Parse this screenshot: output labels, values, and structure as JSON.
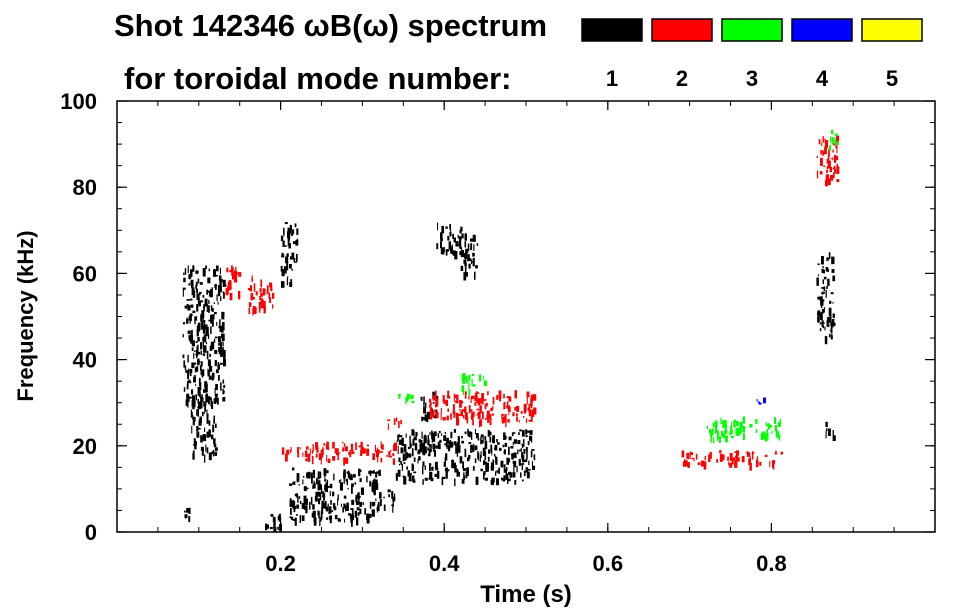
{
  "header": {
    "title_line1": "Shot 142346 ωB(ω) spectrum",
    "title_line2": "for toroidal mode number:"
  },
  "legend": [
    {
      "label": "1",
      "color": "#000000"
    },
    {
      "label": "2",
      "color": "#ff0000"
    },
    {
      "label": "3",
      "color": "#00ff00"
    },
    {
      "label": "4",
      "color": "#0000ff"
    },
    {
      "label": "5",
      "color": "#ffff00"
    }
  ],
  "chart_data": {
    "type": "heatmap",
    "title": "Shot 142346 ωB(ω) spectrum",
    "xlabel": "Time (s)",
    "ylabel": "Frequency (kHz)",
    "xlim": [
      0.0,
      1.0
    ],
    "ylim": [
      0,
      100
    ],
    "x_ticks": [
      {
        "value": 0.2,
        "label": "0.2"
      },
      {
        "value": 0.4,
        "label": "0.4"
      },
      {
        "value": 0.6,
        "label": "0.6"
      },
      {
        "value": 0.8,
        "label": "0.8"
      }
    ],
    "y_ticks": [
      {
        "value": 0,
        "label": "0"
      },
      {
        "value": 20,
        "label": "20"
      },
      {
        "value": 40,
        "label": "40"
      },
      {
        "value": 60,
        "label": "60"
      },
      {
        "value": 80,
        "label": "80"
      },
      {
        "value": 100,
        "label": "100"
      }
    ],
    "series": [
      {
        "name": "1",
        "color": "#000000",
        "regions": [
          {
            "t": [
              0.08,
              0.13
            ],
            "f": [
              30,
              62
            ]
          },
          {
            "t": [
              0.09,
              0.12
            ],
            "f": [
              18,
              32
            ]
          },
          {
            "t": [
              0.08,
              0.09
            ],
            "f": [
              2,
              6
            ]
          },
          {
            "t": [
              0.18,
              0.2
            ],
            "f": [
              1,
              5
            ]
          },
          {
            "t": [
              0.2,
              0.22
            ],
            "f": [
              58,
              72
            ]
          },
          {
            "t": [
              0.21,
              0.32
            ],
            "f": [
              3,
              15
            ]
          },
          {
            "t": [
              0.32,
              0.34
            ],
            "f": [
              6,
              10
            ]
          },
          {
            "t": [
              0.34,
              0.51
            ],
            "f": [
              12,
              24
            ]
          },
          {
            "t": [
              0.37,
              0.39
            ],
            "f": [
              26,
              33
            ]
          },
          {
            "t": [
              0.39,
              0.42
            ],
            "f": [
              64,
              72
            ]
          },
          {
            "t": [
              0.42,
              0.44
            ],
            "f": [
              60,
              70
            ]
          },
          {
            "t": [
              0.855,
              0.875
            ],
            "f": [
              45,
              65
            ]
          },
          {
            "t": [
              0.865,
              0.875
            ],
            "f": [
              22,
              26
            ]
          }
        ]
      },
      {
        "name": "2",
        "color": "#ff0000",
        "regions": [
          {
            "t": [
              0.16,
              0.19
            ],
            "f": [
              52,
              60
            ]
          },
          {
            "t": [
              0.13,
              0.15
            ],
            "f": [
              55,
              62
            ]
          },
          {
            "t": [
              0.2,
              0.23
            ],
            "f": [
              18,
              20
            ]
          },
          {
            "t": [
              0.23,
              0.34
            ],
            "f": [
              17,
              21
            ]
          },
          {
            "t": [
              0.33,
              0.35
            ],
            "f": [
              25,
              27
            ]
          },
          {
            "t": [
              0.38,
              0.51
            ],
            "f": [
              26,
              33
            ]
          },
          {
            "t": [
              0.69,
              0.82
            ],
            "f": [
              16,
              19
            ]
          },
          {
            "t": [
              0.855,
              0.88
            ],
            "f": [
              80,
              92
            ]
          }
        ]
      },
      {
        "name": "3",
        "color": "#00ff00",
        "regions": [
          {
            "t": [
              0.34,
              0.36
            ],
            "f": [
              30,
              33
            ]
          },
          {
            "t": [
              0.42,
              0.45
            ],
            "f": [
              33,
              37
            ]
          },
          {
            "t": [
              0.72,
              0.81
            ],
            "f": [
              22,
              27
            ]
          },
          {
            "t": [
              0.87,
              0.88
            ],
            "f": [
              89,
              94
            ]
          }
        ]
      },
      {
        "name": "4",
        "color": "#0000ff",
        "regions": [
          {
            "t": [
              0.78,
              0.79
            ],
            "f": [
              30,
              32
            ]
          }
        ]
      },
      {
        "name": "5",
        "color": "#ffff00",
        "regions": []
      }
    ]
  }
}
